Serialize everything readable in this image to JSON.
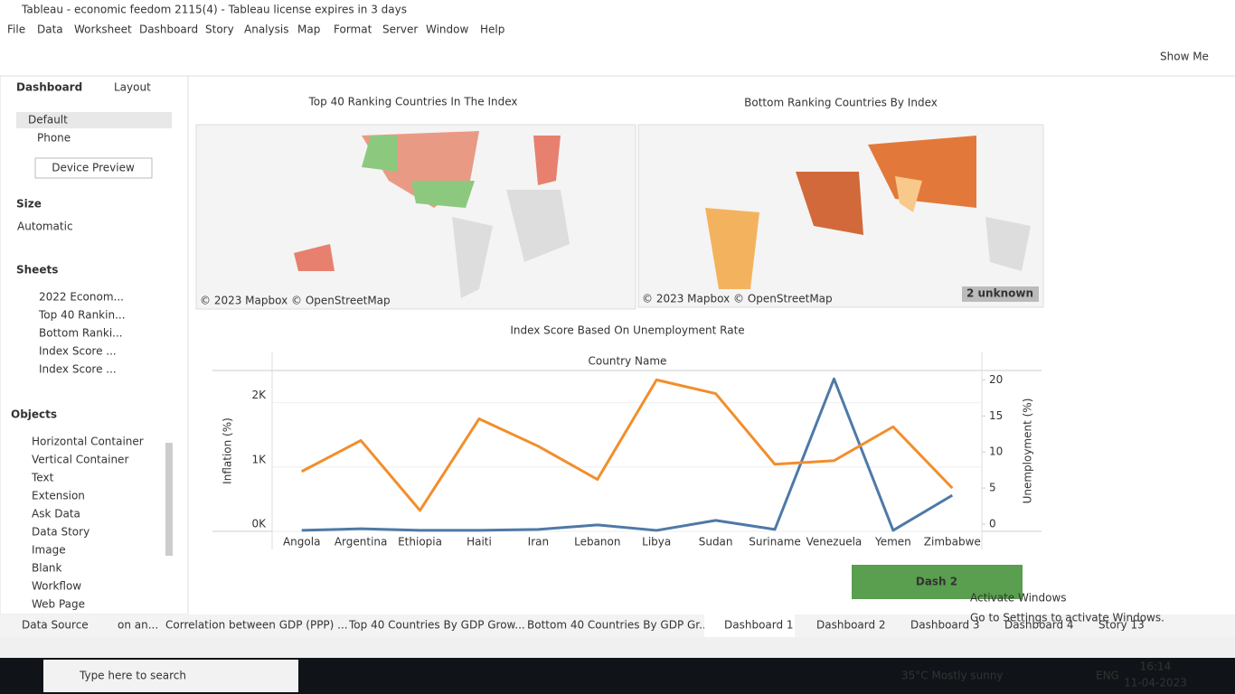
{
  "window": {
    "title": "Tableau - economic feedom 2115(4) - Tableau license expires in 3 days"
  },
  "menu": [
    "File",
    "Data",
    "Worksheet",
    "Dashboard",
    "Story",
    "Analysis",
    "Map",
    "Format",
    "Server",
    "Window",
    "Help"
  ],
  "toolbar": {
    "show_me": "Show Me"
  },
  "side_panel": {
    "tabs": [
      "Dashboard",
      "Layout"
    ],
    "devices": [
      "Default",
      "Phone"
    ],
    "device_preview": "Device Preview",
    "size_heading": "Size",
    "size_value": "Automatic",
    "sheets_heading": "Sheets",
    "sheets": [
      "2022 Econom...",
      "Top 40 Rankin...",
      "Bottom Ranki...",
      "Index Score ...",
      "Index Score ..."
    ],
    "objects_heading": "Objects",
    "objects": [
      "Horizontal Container",
      "Vertical Container",
      "Text",
      "Extension",
      "Ask Data",
      "Data Story",
      "Image",
      "Blank",
      "Workflow",
      "Web Page"
    ]
  },
  "dashboard": {
    "map_left": {
      "title": "Top 40 Ranking Countries In The Index",
      "attribution": "© 2023 Mapbox © OpenStreetMap"
    },
    "map_right": {
      "title": "Bottom Ranking Countries By Index",
      "attribution": "© 2023 Mapbox © OpenStreetMap",
      "badge": "2 unknown"
    },
    "chart": {
      "type": "line",
      "title": "Index Score Based On Unemployment Rate",
      "x_label": "Country Name",
      "y_label": "Inflation (%)",
      "y2_label": "Unemployment (%)",
      "categories": [
        "Angola",
        "Argentina",
        "Ethiopia",
        "Haiti",
        "Iran",
        "Lebanon",
        "Libya",
        "Sudan",
        "Suriname",
        "Venezuela",
        "Yemen",
        "Zimbabwe"
      ],
      "series": [
        {
          "color": "#4e79a7",
          "values": [
            15,
            40,
            15,
            15,
            30,
            100,
            15,
            170,
            30,
            2370,
            15,
            560
          ]
        },
        {
          "color": "#f28e2b",
          "axis": "y2",
          "values": [
            7.3,
            11.6,
            1.9,
            14.6,
            10.8,
            6.2,
            20,
            18.1,
            8.3,
            8.8,
            13.5,
            5.0
          ]
        }
      ],
      "ylim": [
        0,
        2500
      ],
      "yticks": [
        {
          "value": 0,
          "label": "0K"
        },
        {
          "value": 1000,
          "label": "1K"
        },
        {
          "value": 2000,
          "label": "2K"
        }
      ],
      "y2lim": [
        -1,
        21.3
      ],
      "y2ticks": [
        0,
        5,
        10,
        15,
        20
      ],
      "grid": true
    },
    "button": "Dash 2",
    "watermark": [
      "Activate Windows",
      "Go to Settings to activate Windows."
    ]
  },
  "tabs": [
    "Data Source",
    "on an...",
    "Correlation between GDP (PPP) ...",
    "Top 40 Countries By GDP Grow...",
    "Bottom 40 Countries By GDP Gr...",
    "Dashboard 1",
    "Dashboard 2",
    "Dashboard 3",
    "Dashboard 4",
    "Story 13"
  ],
  "taskbar": {
    "search": "Type here to search",
    "weather": "35°C  Mostly sunny",
    "language": "ENG",
    "time": "16:14",
    "date": "11-04-2023"
  }
}
